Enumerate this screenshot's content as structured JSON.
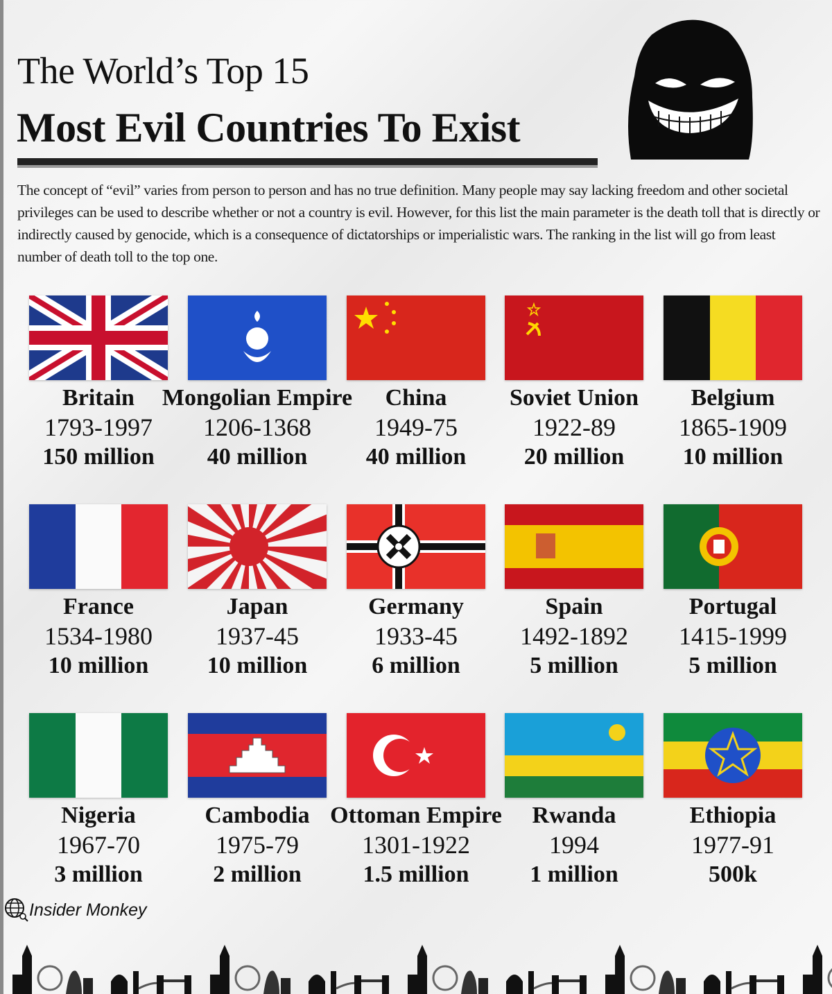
{
  "header": {
    "title_line1": "The World’s Top 15",
    "title_line2": "Most Evil Countries To Exist"
  },
  "intro": "The concept of “evil” varies from person to person and has no true definition. Many people may say lacking freedom and other societal privileges can be used to describe whether or not a country is evil. However, for this list the main parameter is the death toll that is directly or indirectly caused by genocide, which is a consequence of dictatorships or imperialistic wars. The ranking in the list will go from least number of death toll to the top one.",
  "countries": [
    {
      "name": "Britain",
      "years": "1793-1997",
      "toll": "150 million",
      "flag": "uk"
    },
    {
      "name": "Mongolian Empire",
      "years": "1206-1368",
      "toll": "40 million",
      "flag": "mongolia"
    },
    {
      "name": "China",
      "years": "1949-75",
      "toll": "40 million",
      "flag": "china"
    },
    {
      "name": "Soviet Union",
      "years": "1922-89",
      "toll": "20 million",
      "flag": "soviet"
    },
    {
      "name": "Belgium",
      "years": "1865-1909",
      "toll": "10 million",
      "flag": "belgium"
    },
    {
      "name": "France",
      "years": "1534-1980",
      "toll": "10 million",
      "flag": "france"
    },
    {
      "name": "Japan",
      "years": "1937-45",
      "toll": "10 million",
      "flag": "japan"
    },
    {
      "name": "Germany",
      "years": "1933-45",
      "toll": "6 million",
      "flag": "germany"
    },
    {
      "name": "Spain",
      "years": "1492-1892",
      "toll": "5 million",
      "flag": "spain"
    },
    {
      "name": "Portugal",
      "years": "1415-1999",
      "toll": "5 million",
      "flag": "portugal"
    },
    {
      "name": "Nigeria",
      "years": "1967-70",
      "toll": "3 million",
      "flag": "nigeria"
    },
    {
      "name": "Cambodia",
      "years": "1975-79",
      "toll": "2 million",
      "flag": "cambodia"
    },
    {
      "name": "Ottoman Empire",
      "years": "1301-1922",
      "toll": "1.5 million",
      "flag": "ottoman"
    },
    {
      "name": "Rwanda",
      "years": "1994",
      "toll": "1 million",
      "flag": "rwanda"
    },
    {
      "name": "Ethiopia",
      "years": "1977-91",
      "toll": "500k",
      "flag": "ethiopia"
    }
  ],
  "footer": {
    "brand": "Insider Monkey",
    "brand_icon": "globe-search-icon"
  }
}
